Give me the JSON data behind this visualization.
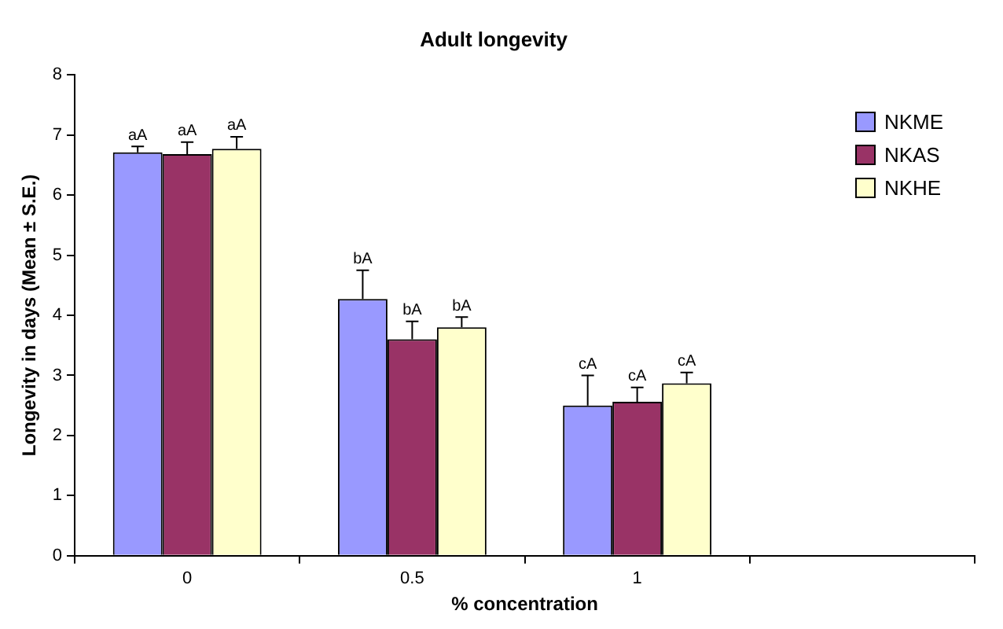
{
  "chart_data": {
    "type": "bar",
    "title": "Adult longevity",
    "xlabel": "% concentration",
    "ylabel": "Longevity in days (Mean ± S.E.)",
    "categories": [
      "0",
      "0.5",
      "1",
      null
    ],
    "series": [
      {
        "name": "NKME",
        "color": "#9999ff",
        "values": [
          6.71,
          4.27,
          2.5,
          null
        ],
        "errors": [
          [
            6.71,
            6.81
          ],
          [
            4.27,
            4.75
          ],
          [
            2.5,
            3.0
          ],
          null
        ],
        "value_labels": [
          "aA",
          "bA",
          "cA",
          null
        ]
      },
      {
        "name": "NKAS",
        "color": "#993366",
        "values": [
          6.68,
          3.6,
          2.56,
          null
        ],
        "errors": [
          [
            6.68,
            6.88
          ],
          [
            3.6,
            3.9
          ],
          [
            2.56,
            2.8
          ],
          null
        ],
        "value_labels": [
          "aA",
          "bA",
          "cA",
          null
        ]
      },
      {
        "name": "NKHE",
        "color": "#ffffcc",
        "values": [
          6.77,
          3.8,
          2.87,
          null
        ],
        "errors": [
          [
            6.77,
            6.97
          ],
          [
            3.8,
            3.97
          ],
          [
            2.87,
            3.05
          ],
          null
        ],
        "value_labels": [
          "aA",
          "bA",
          "cA",
          null
        ]
      }
    ],
    "ylim": [
      0,
      8
    ],
    "yticks": [
      0,
      1,
      2,
      3,
      4,
      5,
      6,
      7,
      8
    ],
    "grid": false,
    "legend": "top right"
  }
}
